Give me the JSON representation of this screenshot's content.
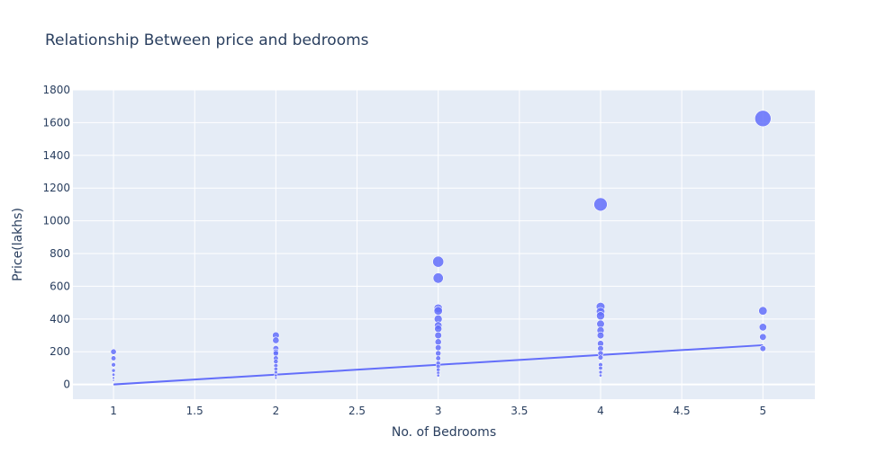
{
  "colors": {
    "plot_bg": "#E5ECF6",
    "grid": "#ffffff",
    "marker": "#636EFA",
    "text": "#2a3f5f"
  },
  "chart_data": {
    "type": "scatter",
    "title": "Relationship Between price and bedrooms",
    "xlabel": "No. of Bedrooms",
    "ylabel": "Price(lakhs)",
    "xlim": [
      0.75,
      5.32
    ],
    "ylim": [
      -90,
      1800
    ],
    "xticks": [
      1,
      1.5,
      2,
      2.5,
      3,
      3.5,
      4,
      4.5,
      5
    ],
    "xtick_labels": [
      "1",
      "1.5",
      "2",
      "2.5",
      "3",
      "3.5",
      "4",
      "4.5",
      "5"
    ],
    "yticks": [
      0,
      200,
      400,
      600,
      800,
      1000,
      1200,
      1400,
      1600,
      1800
    ],
    "ytick_labels": [
      "0",
      "200",
      "400",
      "600",
      "800",
      "1000",
      "1200",
      "1400",
      "1600",
      "1800"
    ],
    "grid": true,
    "legend": "none",
    "marker_size_encodes": "price",
    "points": [
      {
        "x": 1,
        "y": 200
      },
      {
        "x": 1,
        "y": 160
      },
      {
        "x": 1,
        "y": 120
      },
      {
        "x": 1,
        "y": 85
      },
      {
        "x": 1,
        "y": 60
      },
      {
        "x": 1,
        "y": 40
      },
      {
        "x": 1,
        "y": 25
      },
      {
        "x": 2,
        "y": 300
      },
      {
        "x": 2,
        "y": 270
      },
      {
        "x": 2,
        "y": 220
      },
      {
        "x": 2,
        "y": 200
      },
      {
        "x": 2,
        "y": 190
      },
      {
        "x": 2,
        "y": 160
      },
      {
        "x": 2,
        "y": 140
      },
      {
        "x": 2,
        "y": 115
      },
      {
        "x": 2,
        "y": 95
      },
      {
        "x": 2,
        "y": 75
      },
      {
        "x": 2,
        "y": 55
      },
      {
        "x": 2,
        "y": 40
      },
      {
        "x": 3,
        "y": 750
      },
      {
        "x": 3,
        "y": 650
      },
      {
        "x": 3,
        "y": 465
      },
      {
        "x": 3,
        "y": 450
      },
      {
        "x": 3,
        "y": 400
      },
      {
        "x": 3,
        "y": 360
      },
      {
        "x": 3,
        "y": 340
      },
      {
        "x": 3,
        "y": 300
      },
      {
        "x": 3,
        "y": 260
      },
      {
        "x": 3,
        "y": 225
      },
      {
        "x": 3,
        "y": 190
      },
      {
        "x": 3,
        "y": 160
      },
      {
        "x": 3,
        "y": 130
      },
      {
        "x": 3,
        "y": 110
      },
      {
        "x": 3,
        "y": 90
      },
      {
        "x": 3,
        "y": 70
      },
      {
        "x": 3,
        "y": 55
      },
      {
        "x": 4,
        "y": 1100
      },
      {
        "x": 4,
        "y": 475
      },
      {
        "x": 4,
        "y": 445
      },
      {
        "x": 4,
        "y": 420
      },
      {
        "x": 4,
        "y": 370
      },
      {
        "x": 4,
        "y": 330
      },
      {
        "x": 4,
        "y": 300
      },
      {
        "x": 4,
        "y": 250
      },
      {
        "x": 4,
        "y": 220
      },
      {
        "x": 4,
        "y": 190
      },
      {
        "x": 4,
        "y": 165
      },
      {
        "x": 4,
        "y": 120
      },
      {
        "x": 4,
        "y": 100
      },
      {
        "x": 4,
        "y": 75
      },
      {
        "x": 4,
        "y": 55
      },
      {
        "x": 5,
        "y": 1625
      },
      {
        "x": 5,
        "y": 450
      },
      {
        "x": 5,
        "y": 350
      },
      {
        "x": 5,
        "y": 290
      },
      {
        "x": 5,
        "y": 220
      }
    ],
    "trendline": {
      "x": [
        1,
        5
      ],
      "y": [
        0,
        240
      ]
    }
  }
}
